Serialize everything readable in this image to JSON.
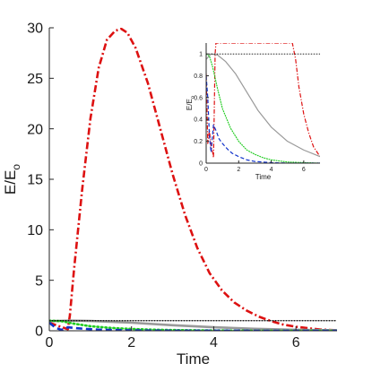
{
  "chart_data": [
    {
      "type": "line",
      "xlabel": "Time",
      "ylabel_main": "E/E",
      "ylabel_sub": "o",
      "xlim": [
        0,
        7
      ],
      "ylim": [
        0,
        30
      ],
      "xticks": [
        0,
        2,
        4,
        6
      ],
      "yticks": [
        0,
        5,
        10,
        15,
        20,
        25,
        30
      ],
      "grid": false,
      "series": [
        {
          "color": "#dd1111",
          "style": "dashdot",
          "x": [
            0,
            0.2,
            0.35,
            0.45,
            0.5,
            0.6,
            0.8,
            1.0,
            1.2,
            1.4,
            1.6,
            1.75,
            1.9,
            2.1,
            2.4,
            2.7,
            3.0,
            3.3,
            3.6,
            3.9,
            4.2,
            4.5,
            4.8,
            5.1,
            5.4,
            5.7,
            6.0,
            6.3,
            6.6,
            7.0
          ],
          "y": [
            0.8,
            0.5,
            0.3,
            0.15,
            1.5,
            6,
            14,
            21,
            26,
            28.8,
            29.7,
            29.9,
            29.5,
            28,
            24.5,
            20,
            15.5,
            11.5,
            8.2,
            5.7,
            4.0,
            2.8,
            2.0,
            1.4,
            0.95,
            0.6,
            0.4,
            0.25,
            0.12,
            0.05
          ]
        },
        {
          "color": "#999999",
          "style": "solid",
          "x": [
            0,
            0.5,
            1,
            2,
            3,
            4,
            5,
            6,
            7
          ],
          "y": [
            0.95,
            1.0,
            0.97,
            0.8,
            0.55,
            0.35,
            0.2,
            0.1,
            0.05
          ]
        },
        {
          "color": "#22cc22",
          "style": "dotted",
          "x": [
            0,
            0.3,
            0.6,
            1,
            1.5,
            2,
            2.5,
            3,
            4,
            5,
            6,
            7
          ],
          "y": [
            1.0,
            0.95,
            0.7,
            0.45,
            0.28,
            0.18,
            0.11,
            0.07,
            0.03,
            0.01,
            0.005,
            0.0
          ]
        },
        {
          "color": "#1133cc",
          "style": "dashed",
          "x": [
            0,
            0.15,
            0.3,
            0.45,
            0.6,
            0.9,
            1.2,
            1.6,
            2,
            2.5,
            3,
            4,
            5,
            6,
            7
          ],
          "y": [
            0.8,
            0.3,
            0.08,
            0.35,
            0.28,
            0.18,
            0.11,
            0.07,
            0.04,
            0.02,
            0.01,
            0.005,
            0.0,
            0.0,
            0.0
          ]
        },
        {
          "color": "#000000",
          "style": "dotted",
          "x": [
            0,
            7
          ],
          "y": [
            1,
            1
          ]
        }
      ]
    },
    {
      "type": "line",
      "xlabel": "Time",
      "ylabel_main": "E/E",
      "ylabel_sub": "o",
      "xlim": [
        0,
        7
      ],
      "ylim": [
        0,
        1.1
      ],
      "xticks": [
        0,
        2,
        4,
        6
      ],
      "yticks": [
        0,
        0.2,
        0.4,
        0.6,
        0.8,
        1
      ],
      "ytick_labels": [
        "0",
        "0.2",
        "0.4",
        "0.6",
        "0.8",
        "1"
      ],
      "grid": false,
      "series": [
        {
          "color": "#dd1111",
          "style": "dashdot",
          "x": [
            0,
            0.1,
            0.2,
            0.3,
            0.4,
            0.45,
            0.5,
            0.55,
            0.6,
            0.65,
            5.3,
            5.5,
            5.7,
            6.0,
            6.3,
            6.6,
            7.0
          ],
          "y": [
            0.82,
            0.18,
            0.3,
            0.15,
            0.1,
            0.05,
            0.5,
            1.0,
            1.1,
            1.1,
            1.1,
            0.95,
            0.7,
            0.45,
            0.28,
            0.15,
            0.06
          ]
        },
        {
          "color": "#999999",
          "style": "solid",
          "x": [
            0,
            0.3,
            0.7,
            1.2,
            1.8,
            2.5,
            3.2,
            4,
            5,
            6,
            7
          ],
          "y": [
            0.95,
            1.0,
            0.99,
            0.93,
            0.82,
            0.65,
            0.48,
            0.33,
            0.2,
            0.12,
            0.06
          ]
        },
        {
          "color": "#22cc22",
          "style": "dotted",
          "x": [
            0,
            0.2,
            0.4,
            0.7,
            1.0,
            1.5,
            2.0,
            2.5,
            3.0,
            3.5,
            4,
            5,
            6,
            7
          ],
          "y": [
            1.0,
            0.98,
            0.88,
            0.68,
            0.5,
            0.32,
            0.2,
            0.12,
            0.08,
            0.05,
            0.03,
            0.01,
            0.005,
            0.0
          ]
        },
        {
          "color": "#1133cc",
          "style": "dashed",
          "x": [
            0,
            0.1,
            0.2,
            0.3,
            0.45,
            0.6,
            0.8,
            1.0,
            1.3,
            1.6,
            2.0,
            2.5,
            3.0,
            4,
            5,
            6,
            7
          ],
          "y": [
            0.8,
            0.6,
            0.25,
            0.1,
            0.35,
            0.3,
            0.22,
            0.18,
            0.13,
            0.09,
            0.06,
            0.03,
            0.015,
            0.005,
            0.0,
            0.0,
            0.0
          ]
        },
        {
          "color": "#000000",
          "style": "dotted",
          "x": [
            0,
            7
          ],
          "y": [
            1,
            1
          ]
        }
      ]
    }
  ]
}
